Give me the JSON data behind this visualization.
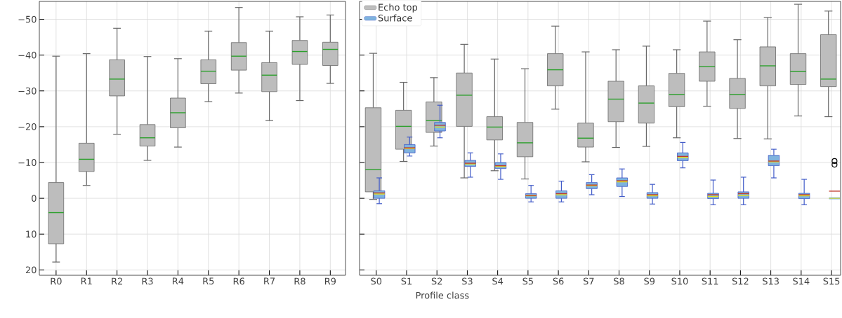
{
  "chart_data": [
    {
      "type": "box",
      "categories": [
        "R0",
        "R1",
        "R2",
        "R3",
        "R4",
        "R5",
        "R6",
        "R7",
        "R8",
        "R9"
      ],
      "color": "#bdbdbd",
      "boxes": [
        {
          "low": -39.7,
          "q1": -4.4,
          "median": 4.0,
          "q3": 12.7,
          "high": 17.8
        },
        {
          "low": -40.4,
          "q1": -15.4,
          "median": -10.9,
          "q3": -7.5,
          "high": -3.6
        },
        {
          "low": -47.5,
          "q1": -38.7,
          "median": -33.3,
          "q3": -28.6,
          "high": -17.9
        },
        {
          "low": -39.6,
          "q1": -20.6,
          "median": -16.9,
          "q3": -14.6,
          "high": -10.6
        },
        {
          "low": -39.0,
          "q1": -28.0,
          "median": -23.9,
          "q3": -19.7,
          "high": -14.3
        },
        {
          "low": -46.7,
          "q1": -38.7,
          "median": -35.5,
          "q3": -32.0,
          "high": -27.0
        },
        {
          "low": -53.3,
          "q1": -43.5,
          "median": -39.7,
          "q3": -35.8,
          "high": -29.4
        },
        {
          "low": -46.7,
          "q1": -37.9,
          "median": -34.4,
          "q3": -29.8,
          "high": -21.7
        },
        {
          "low": -50.7,
          "q1": -44.1,
          "median": -41.0,
          "q3": -37.4,
          "high": -27.3
        },
        {
          "low": -51.2,
          "q1": -43.6,
          "median": -41.6,
          "q3": -37.1,
          "high": -32.1
        }
      ],
      "ylim": [
        21.5,
        -55
      ],
      "yticks": [
        {
          "value": -50,
          "label": "−50"
        },
        {
          "value": -40,
          "label": "−40"
        },
        {
          "value": -30,
          "label": "−30"
        },
        {
          "value": -20,
          "label": "−20"
        },
        {
          "value": -10,
          "label": "−10"
        },
        0,
        10,
        20
      ],
      "grid": true
    },
    {
      "type": "box",
      "categories": [
        "S0",
        "S1",
        "S2",
        "S3",
        "S4",
        "S5",
        "S6",
        "S7",
        "S8",
        "S9",
        "S10",
        "S11",
        "S12",
        "S13",
        "S14",
        "S15"
      ],
      "xlabel": "Profile class",
      "series": [
        {
          "name": "Echo top",
          "color": "#bdbdbd",
          "boxes": [
            {
              "low": -40.5,
              "q1": -25.3,
              "median": -8.0,
              "q3": -1.8,
              "high": 0.3
            },
            {
              "low": -32.4,
              "q1": -24.6,
              "median": -20.1,
              "q3": -13.7,
              "high": -10.3
            },
            {
              "low": -33.7,
              "q1": -26.9,
              "median": -21.7,
              "q3": -18.4,
              "high": -14.6
            },
            {
              "low": -43.0,
              "q1": -35.0,
              "median": -28.8,
              "q3": -20.1,
              "high": -5.7
            },
            {
              "low": -38.9,
              "q1": -22.8,
              "median": -19.9,
              "q3": -16.3,
              "high": -7.7
            },
            {
              "low": -36.2,
              "q1": -21.2,
              "median": -15.5,
              "q3": -11.6,
              "high": -5.4
            },
            {
              "low": -48.1,
              "q1": -40.4,
              "median": -35.9,
              "q3": -31.4,
              "high": -24.9
            },
            {
              "low": -40.9,
              "q1": -21.0,
              "median": -16.8,
              "q3": -14.3,
              "high": -10.2
            },
            {
              "low": -41.5,
              "q1": -32.7,
              "median": -27.7,
              "q3": -21.4,
              "high": -14.2
            },
            {
              "low": -42.5,
              "q1": -31.4,
              "median": -26.6,
              "q3": -21.0,
              "high": -14.5
            },
            {
              "low": -41.5,
              "q1": -34.9,
              "median": -29.0,
              "q3": -25.6,
              "high": -16.9
            },
            {
              "low": -49.5,
              "q1": -40.9,
              "median": -36.8,
              "q3": -32.7,
              "high": -25.7
            },
            {
              "low": -44.3,
              "q1": -33.5,
              "median": -29.0,
              "q3": -25.1,
              "high": -16.7
            },
            {
              "low": -50.5,
              "q1": -42.3,
              "median": -37.0,
              "q3": -31.4,
              "high": -16.6
            },
            {
              "low": -54.2,
              "q1": -40.4,
              "median": -35.4,
              "q3": -31.8,
              "high": -23.0
            },
            {
              "low": -52.3,
              "q1": -45.7,
              "median": -33.3,
              "q3": -31.2,
              "high": -22.8
            }
          ]
        },
        {
          "name": "Surface",
          "color": "#7fb3de",
          "boxes": [
            {
              "low": -5.7,
              "q1": -2.1,
              "median": -1.2,
              "q3": 0.0,
              "high": 1.5,
              "mean": -1.5
            },
            {
              "low": -17.1,
              "q1": -15.0,
              "median": -13.9,
              "q3": -12.7,
              "high": -11.8,
              "mean": -14.1
            },
            {
              "low": -26.0,
              "q1": -21.2,
              "median": -19.9,
              "q3": -18.8,
              "high": -16.9,
              "mean": -20.4
            },
            {
              "low": -12.7,
              "q1": -10.6,
              "median": -9.6,
              "q3": -8.9,
              "high": -5.9,
              "mean": -9.8
            },
            {
              "low": -12.4,
              "q1": -10.0,
              "median": -8.9,
              "q3": -8.3,
              "high": -5.3,
              "mean": -9.1
            },
            {
              "low": -3.6,
              "q1": -1.3,
              "median": -0.7,
              "q3": 0.0,
              "high": 1.0,
              "mean": -0.8
            },
            {
              "low": -4.8,
              "q1": -2.1,
              "median": -1.0,
              "q3": 0.0,
              "high": 1.0,
              "mean": -1.3
            },
            {
              "low": -6.6,
              "q1": -4.4,
              "median": -3.5,
              "q3": -2.7,
              "high": -1.0,
              "mean": -3.7
            },
            {
              "low": -8.2,
              "q1": -5.7,
              "median": -4.6,
              "q3": -3.3,
              "high": -0.5,
              "mean": -4.9
            },
            {
              "low": -3.9,
              "q1": -1.6,
              "median": -0.7,
              "q3": 0.0,
              "high": 1.6,
              "mean": -1.0
            },
            {
              "low": -15.6,
              "q1": -12.7,
              "median": -11.4,
              "q3": -10.5,
              "high": -8.5,
              "mean": -11.7
            },
            {
              "low": -5.1,
              "q1": -1.4,
              "median": -0.5,
              "q3": 0.1,
              "high": 1.8,
              "mean": -1.0
            },
            {
              "low": -5.9,
              "q1": -1.8,
              "median": -0.8,
              "q3": 0.0,
              "high": 1.8,
              "mean": -1.3
            },
            {
              "low": -13.7,
              "q1": -12.0,
              "median": -10.2,
              "q3": -9.1,
              "high": -5.7,
              "mean": -10.4
            },
            {
              "low": -5.3,
              "q1": -1.4,
              "median": -0.7,
              "q3": 0.1,
              "high": 1.8,
              "mean": -1.0
            },
            {
              "low": 0.0,
              "q1": 0.0,
              "median": 0.0,
              "q3": 0.0,
              "high": 0.0,
              "mean": -2.0,
              "outliers": [
                -10.4,
                -9.4
              ]
            }
          ]
        }
      ],
      "ylim": [
        21.5,
        -55
      ],
      "yticks": [
        -50,
        -40,
        -30,
        -20,
        -10,
        0,
        10,
        20
      ],
      "tick_labels": "x",
      "grid": true,
      "legend": "top left"
    }
  ]
}
